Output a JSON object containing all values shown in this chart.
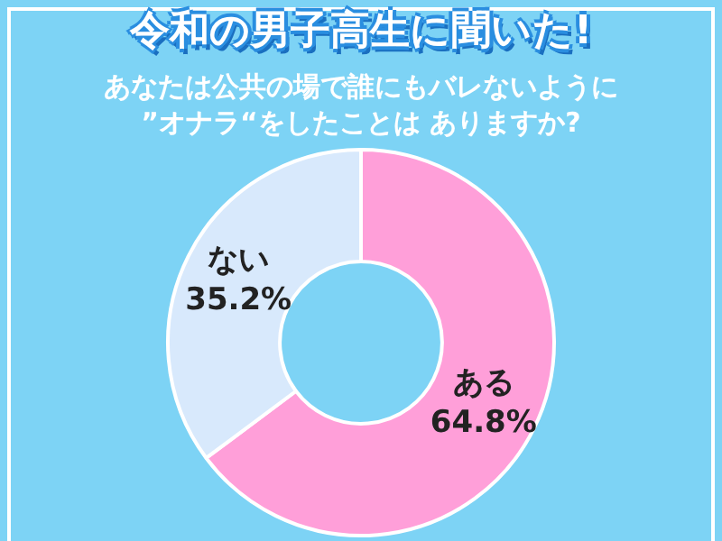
{
  "chart_data": {
    "type": "donut",
    "title": "令和の男子高生に聞いた!",
    "subtitle": "あなたは公共の場で誰にもバレないように\n”オナラ“をしたことは ありますか?",
    "categories": [
      "ある",
      "ない"
    ],
    "values": [
      64.8,
      35.2
    ],
    "colors": [
      "#ff9fd9",
      "#d8e9fc"
    ],
    "value_labels": [
      "64.8%",
      "35.2%"
    ],
    "legend": false
  }
}
